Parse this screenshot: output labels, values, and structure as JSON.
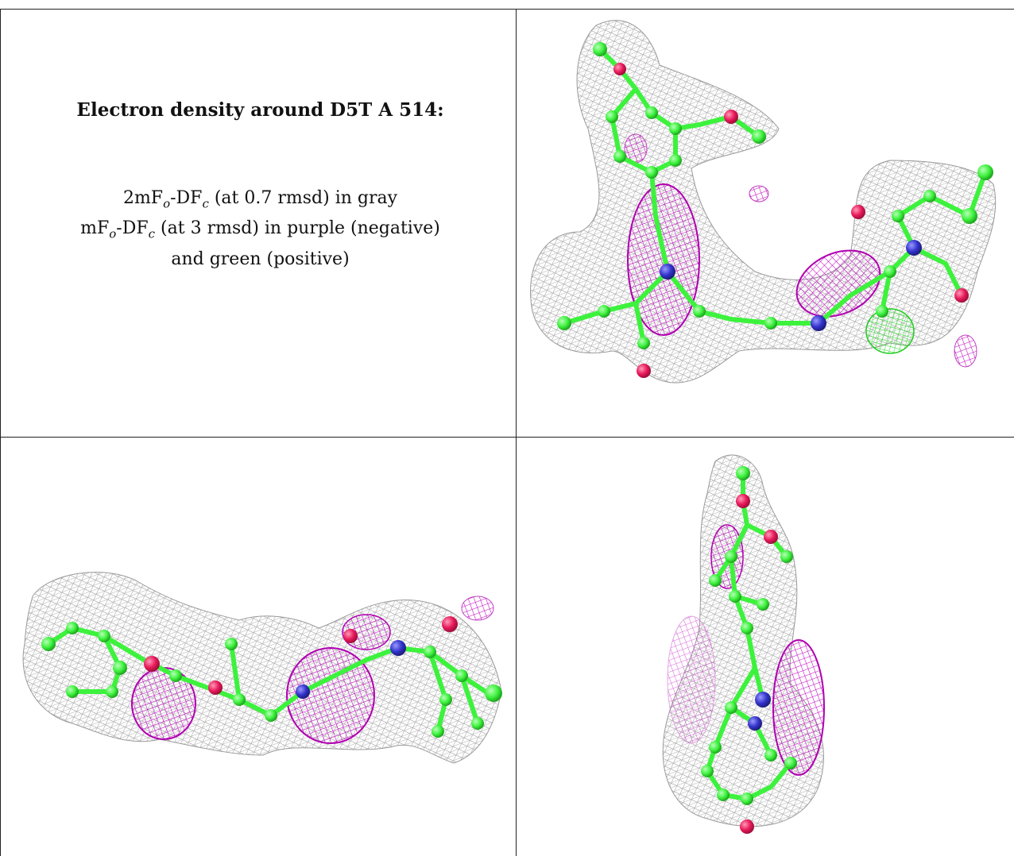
{
  "caption": {
    "title": "Electron density around D5T A 514:",
    "line1": {
      "pre": "2mF",
      "sub1": "o",
      "mid": "-DF",
      "sub2": "c",
      "post": " (at 0.7 rmsd) in gray"
    },
    "line2": {
      "pre": "mF",
      "sub1": "o",
      "mid": "-DF",
      "sub2": "c",
      "post": " (at 3 rmsd) in purple (negative)"
    },
    "line3": "and green (positive)"
  },
  "colors": {
    "mesh_gray": "#9a9a9a",
    "atom_carbon": "#3df23d",
    "atom_oxygen": "#e8195a",
    "atom_nitrogen": "#3333cc",
    "density_negative": "#cc00cc",
    "density_positive": "#22dd22"
  }
}
